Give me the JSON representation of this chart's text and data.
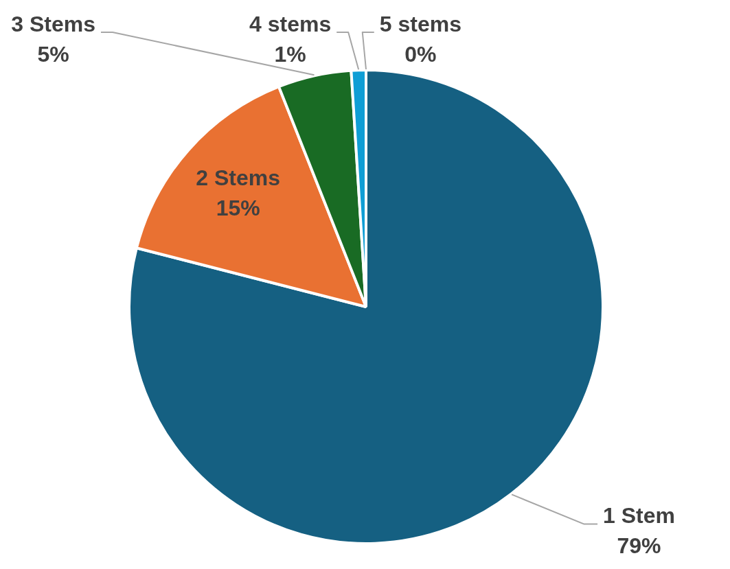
{
  "chart_data": {
    "type": "pie",
    "categories": [
      "1 Stem",
      "2 Stems",
      "3 Stems",
      "4 stems",
      "5 stems"
    ],
    "values": [
      79,
      15,
      5,
      1,
      0
    ],
    "colors": [
      "#156082",
      "#e97132",
      "#196b24",
      "#0f9ed5",
      "#a02b93"
    ],
    "value_labels": [
      "79%",
      "15%",
      "5%",
      "1%",
      "0%"
    ]
  }
}
